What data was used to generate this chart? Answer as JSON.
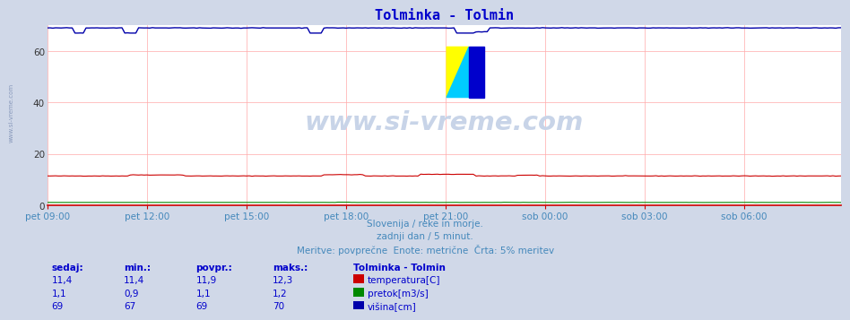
{
  "title": "Tolminka - Tolmin",
  "title_color": "#0000cc",
  "bg_color": "#d0d8e8",
  "plot_bg_color": "#ffffff",
  "grid_color": "#ffaaaa",
  "n_points": 288,
  "ylim": [
    0,
    70
  ],
  "yticks": [
    0,
    20,
    40,
    60
  ],
  "xtick_labels": [
    "pet 09:00",
    "pet 12:00",
    "pet 15:00",
    "pet 18:00",
    "pet 21:00",
    "sob 00:00",
    "sob 03:00",
    "sob 06:00"
  ],
  "xtick_positions": [
    0,
    36,
    72,
    108,
    144,
    180,
    216,
    252
  ],
  "temp_color": "#cc0000",
  "flow_color": "#008800",
  "height_color": "#0000aa",
  "watermark": "www.si-vreme.com",
  "watermark_color": "#c8d4e8",
  "footer_line1": "Slovenija / reke in morje.",
  "footer_line2": "zadnji dan / 5 minut.",
  "footer_line3": "Meritve: povprečne  Enote: metrične  Črta: 5% meritev",
  "footer_color": "#4488bb",
  "legend_title": "Tolminka - Tolmin",
  "legend_color": "#0000cc",
  "table_headers": [
    "sedaj:",
    "min.:",
    "povpr.:",
    "maks.:"
  ],
  "table_temp": [
    "11,4",
    "11,4",
    "11,9",
    "12,3"
  ],
  "table_flow": [
    "1,1",
    "0,9",
    "1,1",
    "1,2"
  ],
  "table_height": [
    "69",
    "67",
    "69",
    "70"
  ],
  "table_color": "#0000cc",
  "sidebar_text": "www.si-vreme.com",
  "sidebar_color": "#8899bb",
  "logo_yellow": "#ffff00",
  "logo_cyan": "#00ccff",
  "logo_blue": "#0000cc"
}
